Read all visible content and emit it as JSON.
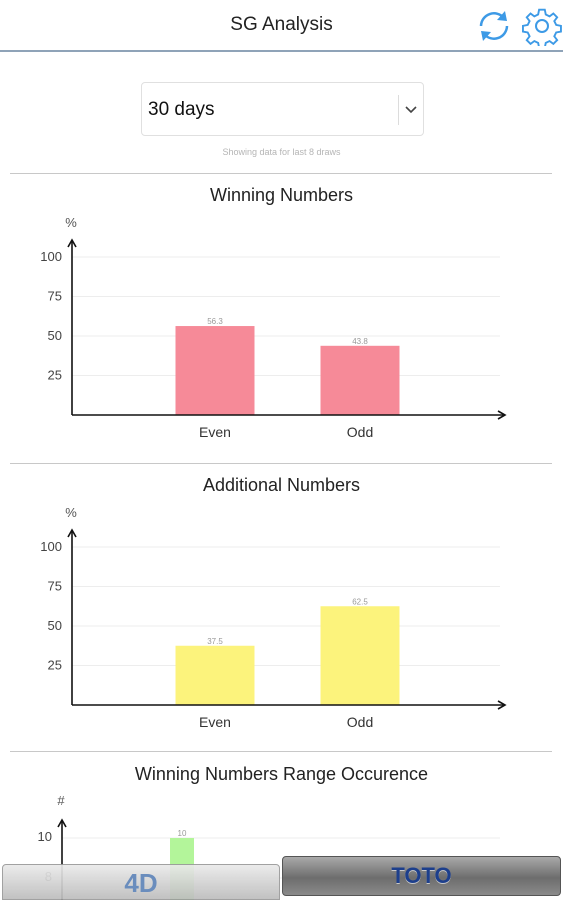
{
  "header": {
    "title": "SG Analysis",
    "icons": [
      "refresh-icon",
      "gear-icon"
    ],
    "accent_color": "#3d9ae6"
  },
  "filter": {
    "selected": "30 days",
    "note": "Showing data for last 8 draws"
  },
  "sections": [
    {
      "title": "Winning Numbers"
    },
    {
      "title": "Additional Numbers"
    },
    {
      "title": "Winning Numbers Range Occurence"
    }
  ],
  "chart_data": [
    {
      "type": "bar",
      "title": "Winning Numbers",
      "ylabel": "%",
      "categories": [
        "Even",
        "Odd"
      ],
      "values": [
        56.3,
        43.8
      ],
      "data_labels": [
        "56.3",
        "43.8"
      ],
      "yticks": [
        "25",
        "50",
        "75",
        "100"
      ],
      "ylim": [
        0,
        100
      ],
      "color": "#f68a98",
      "grid": true
    },
    {
      "type": "bar",
      "title": "Additional Numbers",
      "ylabel": "%",
      "categories": [
        "Even",
        "Odd"
      ],
      "values": [
        37.5,
        62.5
      ],
      "data_labels": [
        "37.5",
        "62.5"
      ],
      "yticks": [
        "25",
        "50",
        "75",
        "100"
      ],
      "ylim": [
        0,
        100
      ],
      "color": "#fcf37c",
      "grid": true
    },
    {
      "type": "bar",
      "title": "Winning Numbers Range Occurence",
      "ylabel": "#",
      "categories": [
        ""
      ],
      "values": [
        10
      ],
      "data_labels": [
        "10"
      ],
      "yticks": [
        "8",
        "10"
      ],
      "color": "#b3f59a",
      "grid": true
    }
  ],
  "tabs": {
    "left": "4D",
    "right": "TOTO"
  }
}
